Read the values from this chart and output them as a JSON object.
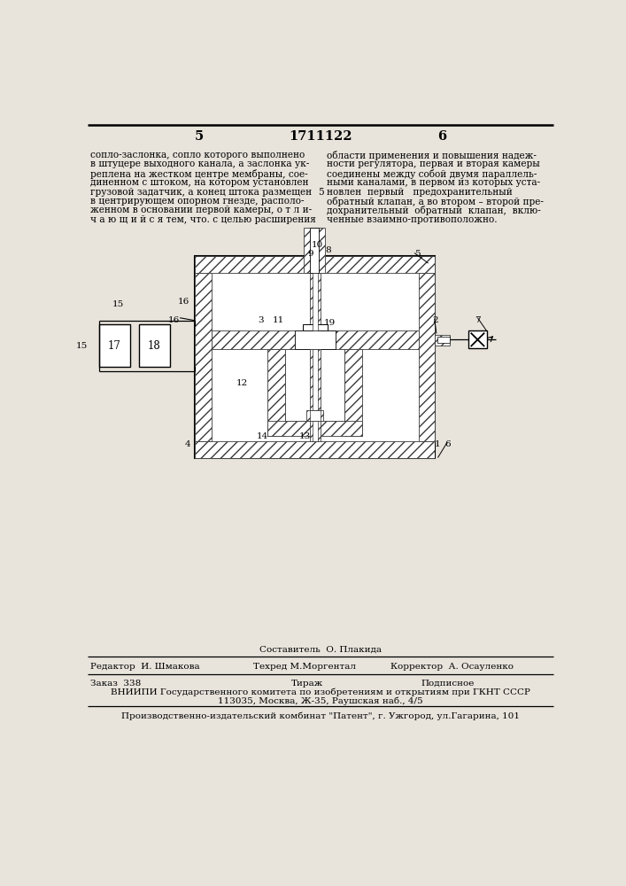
{
  "bg_color": "#e8e4dc",
  "page_num_left": "5",
  "page_num_center": "1711122",
  "page_num_right": "6",
  "left_col_lines": [
    "сопло-заслонка, сопло которого выполнено",
    "в штуцере выходного канала, а заслонка ук-",
    "реплена на жестком центре мембраны, сое-",
    "диненном с штоком, на котором установлен",
    "грузовой задатчик, а конец штока размещен",
    "в центрирующем опорном гнезде, располо-",
    "женном в основании первой камеры, о т л и-",
    "ч а ю щ и й с я тем, что. с целью расширения"
  ],
  "right_col_lines": [
    "области применения и повышения надеж-",
    "ности регулятора, первая и вторая камеры",
    "соединены между собой двумя параллель-",
    "ными каналами, в первом из которых уста-",
    "новлен  первый   предохранительный",
    "обратный клапан, а во втором – второй пре-",
    "дохранительный  обратный  клапан,  вклю-",
    "ченные взаимно-противоположно."
  ],
  "mid_line_num": "5",
  "footer_compiler": "Составитель  О. Плакида",
  "footer_editor": "Редактор  И. Шмакова",
  "footer_techred": "Техред М.Моргентал",
  "footer_corrector": "Корректор  А. Осауленко",
  "footer_order": "Заказ  338",
  "footer_tirazh": "Тираж",
  "footer_podpisnoe": "Подписное",
  "footer_vniipie": "ВНИИПИ Государственного комитета по изобретениям и открытиям при ГКНТ СССР",
  "footer_address": "113035, Москва, Ж-35, Раушская наб., 4/5",
  "footer_factory": "Производственно-издательский комбинат \"Патент\", г. Ужгород, ул.Гагарина, 101",
  "diag_labels": [
    [
      340,
      198,
      "10"
    ],
    [
      360,
      205,
      "8"
    ],
    [
      490,
      210,
      "5"
    ],
    [
      262,
      308,
      "3"
    ],
    [
      283,
      308,
      "11"
    ],
    [
      358,
      312,
      "19"
    ],
    [
      516,
      308,
      "2"
    ],
    [
      230,
      400,
      "12"
    ],
    [
      322,
      478,
      "13"
    ],
    [
      260,
      478,
      "14"
    ],
    [
      519,
      490,
      "1"
    ],
    [
      534,
      490,
      "6"
    ],
    [
      155,
      490,
      "4"
    ],
    [
      145,
      280,
      "16"
    ],
    [
      50,
      285,
      "15"
    ],
    [
      578,
      308,
      "7"
    ],
    [
      334,
      210,
      "9"
    ]
  ]
}
